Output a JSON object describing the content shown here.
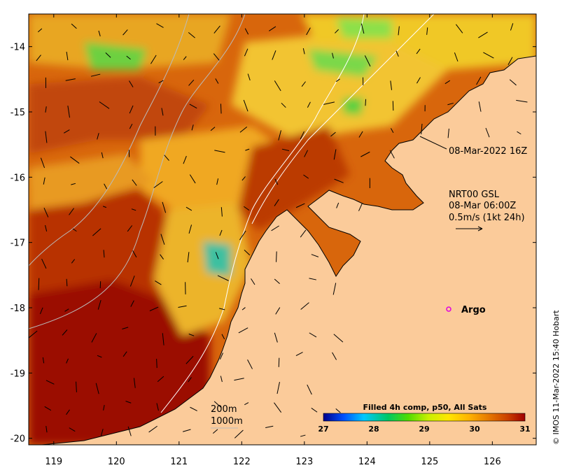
{
  "map": {
    "lon_ticks": [
      "119",
      "120",
      "121",
      "122",
      "123",
      "124",
      "125",
      "126"
    ],
    "lat_ticks": [
      "-14",
      "-15",
      "-16",
      "-17",
      "-18",
      "-19",
      "-20"
    ],
    "lon_range": [
      118.6,
      126.7
    ],
    "lat_range": [
      -20.1,
      -13.5
    ]
  },
  "annotations": {
    "timestamp": "08-Mar-2022 16Z",
    "current_source": "NRT00 GSL",
    "current_time": "08-Mar 06:00Z",
    "arrow_scale": "0.5m/s (1kt 24h)",
    "argo_label": "Argo",
    "depth_200": "200m",
    "depth_1000": "1000m"
  },
  "colorbar": {
    "title": "Filled 4h comp, p50, All Sats",
    "ticks": [
      "27",
      "28",
      "29",
      "30",
      "31"
    ],
    "range": [
      27,
      31
    ],
    "stops": [
      "#00008b",
      "#0050ff",
      "#00c8ff",
      "#00c864",
      "#50dc00",
      "#c8f000",
      "#ffe600",
      "#ffb400",
      "#e67800",
      "#c83c00",
      "#a00000"
    ]
  },
  "credit": "© IMOS 11-Mar-2022 15:40 Hobart",
  "colors": {
    "land": "#fbcb9a",
    "sea_hot": "#9b0a05",
    "sea_warm": "#c84a06",
    "sea_mid": "#e27c10",
    "sea_yellow": "#f0b020",
    "sea_green": "#3ec83c",
    "argo": "#e000e0"
  }
}
